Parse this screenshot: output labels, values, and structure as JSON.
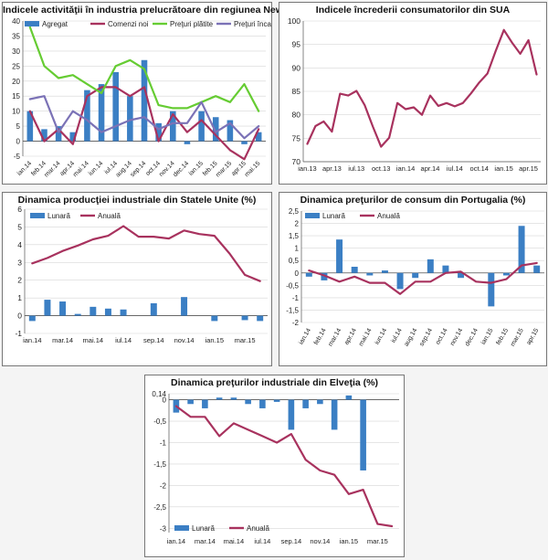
{
  "colors": {
    "bar": "#3b7fc4",
    "red": "#a8325e",
    "green": "#66cc33",
    "purple": "#7b72b6",
    "grid": "#d6d6d6"
  },
  "chart_data": [
    {
      "id": "ny",
      "type": "bar",
      "title": "Indicele activităţii în industria prelucrătoare din regiunea New York",
      "x_labels": [
        "ian.14",
        "feb.14",
        "mar.14",
        "apr.14",
        "mai.14",
        "iun.14",
        "iul.14",
        "aug.14",
        "sep.14",
        "oct.14",
        "nov.14",
        "dec.14",
        "ian.15",
        "feb.15",
        "mar.15",
        "apr.15",
        "mai.15"
      ],
      "tick_labels": [
        "ian.14",
        "feb.14",
        "mar.14",
        "apr.14",
        "mai.14",
        "iun.14",
        "iul.14",
        "aug.14",
        "sep.14",
        "oct.14",
        "nov.14",
        "dec.14",
        "ian.15",
        "feb.15",
        "mar.15",
        "apr.15",
        "mai.15"
      ],
      "y_ticks": [
        -5,
        0,
        5,
        10,
        15,
        20,
        25,
        30,
        35,
        40
      ],
      "ylim": [
        -5,
        40
      ],
      "legend": "top",
      "series": [
        {
          "name": "Agregat",
          "kind": "bar",
          "color": "#3b7fc4",
          "values": [
            10,
            4,
            5,
            3,
            17,
            19,
            23,
            15,
            27,
            6,
            10,
            -1,
            10,
            8,
            7,
            -1,
            3
          ]
        },
        {
          "name": "Comenzi noi",
          "kind": "line",
          "color": "#a8325e",
          "values": [
            10,
            0,
            4,
            -1,
            15,
            18,
            18,
            15,
            18,
            0,
            9,
            3,
            7,
            2,
            -3,
            -6,
            4
          ]
        },
        {
          "name": "Preţuri plătite",
          "kind": "line",
          "color": "#66cc33",
          "values": [
            38,
            25,
            21,
            22,
            19,
            16,
            25,
            27,
            24,
            12,
            11,
            11,
            13,
            15,
            13,
            19,
            10
          ]
        },
        {
          "name": "Preţuri încasate",
          "kind": "line",
          "color": "#7b72b6",
          "values": [
            14,
            15,
            3,
            10,
            7,
            3,
            5,
            7,
            8,
            4,
            6,
            6,
            13,
            3,
            6,
            1,
            5
          ]
        }
      ]
    },
    {
      "id": "sua",
      "type": "line",
      "title": "Indicele încrederii consumatorilor din SUA",
      "x_labels": [
        "ian.13",
        "feb.13",
        "mar.13",
        "apr.13",
        "mai.13",
        "iun.13",
        "iul.13",
        "aug.13",
        "sep.13",
        "oct.13",
        "nov.13",
        "dec.13",
        "ian.14",
        "feb.14",
        "mar.14",
        "apr.14",
        "mai.14",
        "iun.14",
        "iul.14",
        "aug.14",
        "sep.14",
        "oct.14",
        "nov.14",
        "dec.14",
        "ian.15",
        "feb.15",
        "mar.15",
        "apr.15",
        "mai.15"
      ],
      "tick_labels": [
        "ian.13",
        "apr.13",
        "iul.13",
        "oct.13",
        "ian.14",
        "apr.14",
        "iul.14",
        "oct.14",
        "ian.15",
        "apr.15"
      ],
      "y_ticks": [
        70,
        75,
        80,
        85,
        90,
        95,
        100
      ],
      "ylim": [
        70,
        100
      ],
      "legend": "none",
      "series": [
        {
          "name": "Indicele încrederii consumatorilor",
          "kind": "line",
          "color": "#a8325e",
          "values": [
            73.8,
            77.6,
            78.6,
            76.4,
            84.5,
            84.1,
            85.1,
            82.1,
            77.5,
            73.2,
            75.1,
            82.5,
            81.2,
            81.6,
            80.0,
            84.1,
            81.9,
            82.5,
            81.8,
            82.5,
            84.6,
            86.9,
            88.8,
            93.6,
            98.1,
            95.4,
            93.0,
            95.9,
            88.6
          ]
        }
      ]
    },
    {
      "id": "us_prod",
      "type": "bar",
      "title": "Dinamica producţiei industriale din Statele Unite (%)",
      "x_labels": [
        "ian.14",
        "feb.14",
        "mar.14",
        "apr.14",
        "mai.14",
        "iun.14",
        "iul.14",
        "aug.14",
        "sep.14",
        "oct.14",
        "nov.14",
        "dec.14",
        "ian.15",
        "feb.15",
        "mar.15",
        "apr.15"
      ],
      "tick_labels": [
        "ian.14",
        "mar.14",
        "mai.14",
        "iul.14",
        "sep.14",
        "nov.14",
        "ian.15",
        "mar.15"
      ],
      "y_ticks": [
        -1,
        0,
        1,
        2,
        3,
        4,
        5,
        6
      ],
      "ylim": [
        -1,
        6
      ],
      "legend": "top-left",
      "series": [
        {
          "name": "Lunară",
          "kind": "bar",
          "color": "#3b7fc4",
          "values": [
            -0.3,
            0.9,
            0.8,
            0.1,
            0.5,
            0.4,
            0.35,
            0,
            0.7,
            0,
            1.05,
            0,
            -0.3,
            0,
            -0.25,
            -0.3
          ]
        },
        {
          "name": "Anuală",
          "kind": "line",
          "color": "#a8325e",
          "values": [
            2.95,
            3.25,
            3.65,
            3.95,
            4.3,
            4.5,
            5.05,
            4.45,
            4.45,
            4.35,
            4.8,
            4.6,
            4.5,
            3.5,
            2.3,
            1.95
          ]
        }
      ]
    },
    {
      "id": "pt_cpi",
      "type": "bar",
      "title": "Dinamica preţurilor de consum din Portugalia (%)",
      "x_labels": [
        "ian.14",
        "feb.14",
        "mar.14",
        "apr.14",
        "mai.14",
        "iun.14",
        "iul.14",
        "aug.14",
        "sep.14",
        "oct.14",
        "nov.14",
        "dec.14",
        "ian.15",
        "feb.15",
        "mar.15",
        "apr.15"
      ],
      "tick_labels": [
        "ian.14",
        "feb.14",
        "mar.14",
        "apr.14",
        "mai.14",
        "iun.14",
        "iul.14",
        "aug.14",
        "sep.14",
        "oct.14",
        "nov.14",
        "dec.14",
        "ian.15",
        "feb.15",
        "mar.15",
        "apr.15"
      ],
      "y_ticks": [
        -2,
        -1.5,
        -1,
        -0.5,
        0,
        0.5,
        1,
        1.5,
        2,
        2.5
      ],
      "ylim": [
        -2,
        2.5
      ],
      "legend": "top-left",
      "series": [
        {
          "name": "Lunară",
          "kind": "bar",
          "color": "#3b7fc4",
          "values": [
            -0.15,
            -0.3,
            1.35,
            0.25,
            -0.1,
            0.1,
            -0.65,
            -0.2,
            0.55,
            0.3,
            -0.2,
            0,
            -1.35,
            -0.1,
            1.9,
            0.3
          ]
        },
        {
          "name": "Anuală",
          "kind": "line",
          "color": "#a8325e",
          "values": [
            0.1,
            -0.1,
            -0.35,
            -0.15,
            -0.4,
            -0.4,
            -0.85,
            -0.35,
            -0.35,
            0,
            0.05,
            -0.35,
            -0.4,
            -0.25,
            0.3,
            0.4
          ]
        }
      ]
    },
    {
      "id": "ch_ppi",
      "type": "bar",
      "title": "Dinamica preţurilor industriale din Elveţia (%)",
      "x_labels": [
        "ian.14",
        "feb.14",
        "mar.14",
        "apr.14",
        "mai.14",
        "iun.14",
        "iul.14",
        "aug.14",
        "sep.14",
        "oct.14",
        "nov.14",
        "dec.14",
        "ian.15",
        "feb.15",
        "mar.15",
        "apr.15"
      ],
      "tick_labels": [
        "ian.14",
        "mar.14",
        "mai.14",
        "iul.14",
        "sep.14",
        "nov.14",
        "ian.15",
        "mar.15"
      ],
      "y_ticks": [
        -3,
        -2.5,
        -2,
        -1.5,
        -1,
        -0.5,
        0,
        0.14
      ],
      "y_tick_labels": [
        "-3",
        "-2,5",
        "-2",
        "-1,5",
        "-1",
        "-0,5",
        "0",
        "0,14"
      ],
      "ylim": [
        -3.1,
        0.14
      ],
      "legend": "bottom-left",
      "series": [
        {
          "name": "Lunară",
          "kind": "bar",
          "color": "#3b7fc4",
          "values": [
            -0.3,
            -0.1,
            -0.2,
            0.05,
            0.05,
            -0.1,
            -0.2,
            -0.05,
            -0.7,
            -0.2,
            -0.1,
            -0.7,
            0.1,
            -1.65,
            0,
            0
          ]
        },
        {
          "name": "Anuală",
          "kind": "line",
          "color": "#a8325e",
          "values": [
            -0.15,
            -0.4,
            -0.4,
            -0.85,
            -0.55,
            -0.7,
            -0.85,
            -1.0,
            -0.8,
            -1.4,
            -1.65,
            -1.75,
            -2.2,
            -2.1,
            -2.9,
            -2.95
          ]
        }
      ]
    }
  ]
}
